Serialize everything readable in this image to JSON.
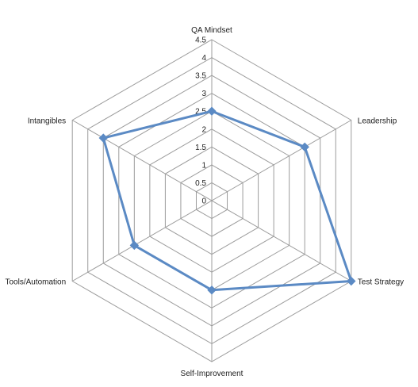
{
  "chart_data": {
    "type": "radar",
    "categories": [
      "QA Mindset",
      "Leadership",
      "Test Strategy",
      "Self-Improvement",
      "Tools/Automation",
      "Intangibles"
    ],
    "series": [
      {
        "values": [
          2.5,
          3.0,
          4.5,
          2.5,
          2.5,
          3.5
        ]
      }
    ],
    "r_ticks": [
      "0",
      "0.5",
      "1",
      "1.5",
      "2",
      "2.5",
      "3",
      "3.5",
      "4",
      "4.5"
    ],
    "rlim": [
      0,
      4.5
    ],
    "grid": true,
    "legend": "none",
    "colors": {
      "series": "#5b8ac4",
      "grid": "#9c9c9c"
    }
  }
}
